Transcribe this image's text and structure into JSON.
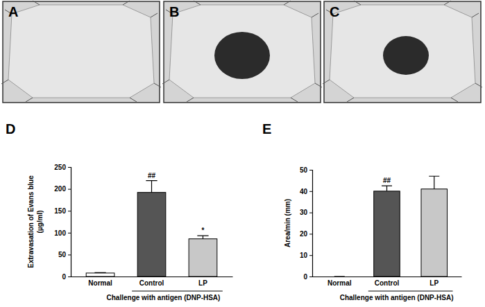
{
  "photos": [
    {
      "label": "A"
    },
    {
      "label": "B"
    },
    {
      "label": "C"
    }
  ],
  "chart_data": [
    {
      "type": "bar",
      "title": "D",
      "ylabel": [
        "Extravasation of Evans blue",
        "(µg/ml)"
      ],
      "categories": [
        "Normal",
        "Control",
        "LP"
      ],
      "values": [
        8,
        192,
        86
      ],
      "errors": [
        1,
        27,
        7
      ],
      "annotations": [
        null,
        "##",
        "*"
      ],
      "colors": [
        "#ffffff",
        "#555555",
        "#c8c8c8"
      ],
      "group_label": "Challenge with antigen (DNP-HSA)",
      "ylim": [
        0,
        250
      ],
      "yticks": [
        0,
        50,
        100,
        150,
        200,
        250
      ]
    },
    {
      "type": "bar",
      "title": "E",
      "ylabel": [
        "Area/min (mm)"
      ],
      "categories": [
        "Normal",
        "Control",
        "LP"
      ],
      "values": [
        0,
        40,
        41
      ],
      "errors": [
        0,
        2.5,
        6
      ],
      "annotations": [
        null,
        "##",
        null
      ],
      "colors": [
        "#ffffff",
        "#555555",
        "#c8c8c8"
      ],
      "group_label": "Challenge with antigen (DNP-HSA)",
      "ylim": [
        0,
        50
      ],
      "yticks": [
        0,
        10,
        20,
        30,
        40,
        50
      ]
    }
  ]
}
